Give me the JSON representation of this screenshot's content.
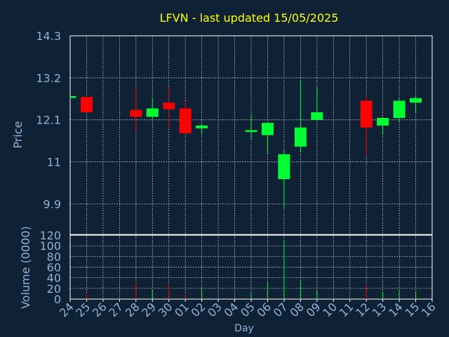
{
  "chart_data": {
    "type": "candlestick",
    "title": "LFVN - last updated 15/05/2025",
    "xlabel": "Day",
    "ylabel_price": "Price",
    "ylabel_volume": "Volume (0000)",
    "price_ylim": [
      9.1,
      14.3
    ],
    "price_ticks": [
      "14.3",
      "13.2",
      "12.1",
      "11",
      "9.9"
    ],
    "price_tick_values": [
      14.3,
      13.2,
      12.1,
      11.0,
      9.9
    ],
    "volume_ylim": [
      0,
      120
    ],
    "volume_ticks": [
      "120",
      "100",
      "80",
      "60",
      "40",
      "20",
      "0"
    ],
    "volume_tick_values": [
      120,
      100,
      80,
      60,
      40,
      20,
      0
    ],
    "grid": true,
    "x_labels": [
      "24",
      "25",
      "26",
      "27",
      "28",
      "29",
      "30",
      "01",
      "02",
      "03",
      "04",
      "05",
      "06",
      "07",
      "08",
      "09",
      "10",
      "11",
      "12",
      "13",
      "14",
      "15",
      "16"
    ],
    "colors": {
      "background": "#0f2135",
      "up": "#00ff33",
      "down": "#ff0000",
      "axis": "#8fb4d8",
      "title": "#ffff00",
      "grid": "#ffffff"
    },
    "candles": [
      {
        "x": "24",
        "open": 12.7,
        "high": 12.7,
        "low": 12.68,
        "close": 12.72,
        "volume": 0
      },
      {
        "x": "25",
        "open": 12.7,
        "high": 12.7,
        "low": 12.3,
        "close": 12.3,
        "volume": 10
      },
      {
        "x": "28",
        "open": 12.36,
        "high": 12.9,
        "low": 11.82,
        "close": 12.18,
        "volume": 32
      },
      {
        "x": "29",
        "open": 12.18,
        "high": 12.68,
        "low": 12.13,
        "close": 12.4,
        "volume": 16
      },
      {
        "x": "30",
        "open": 12.55,
        "high": 12.98,
        "low": 11.88,
        "close": 12.38,
        "volume": 28
      },
      {
        "x": "01",
        "open": 12.4,
        "high": 12.6,
        "low": 11.78,
        "close": 11.75,
        "volume": 10
      },
      {
        "x": "02",
        "open": 11.88,
        "high": 12.0,
        "low": 11.7,
        "close": 11.95,
        "volume": 20
      },
      {
        "x": "05",
        "open": 11.8,
        "high": 12.25,
        "low": 11.6,
        "close": 11.83,
        "volume": 12
      },
      {
        "x": "06",
        "open": 11.7,
        "high": 12.05,
        "low": 11.2,
        "close": 12.02,
        "volume": 30
      },
      {
        "x": "07",
        "open": 10.55,
        "high": 11.3,
        "low": 9.8,
        "close": 11.2,
        "volume": 110
      },
      {
        "x": "08",
        "open": 11.4,
        "high": 13.15,
        "low": 11.25,
        "close": 11.9,
        "volume": 36
      },
      {
        "x": "09",
        "open": 12.1,
        "high": 12.97,
        "low": 12.1,
        "close": 12.3,
        "volume": 16
      },
      {
        "x": "12",
        "open": 12.6,
        "high": 12.75,
        "low": 11.18,
        "close": 11.9,
        "volume": 28
      },
      {
        "x": "13",
        "open": 11.95,
        "high": 12.17,
        "low": 11.7,
        "close": 12.15,
        "volume": 14
      },
      {
        "x": "14",
        "open": 12.15,
        "high": 12.66,
        "low": 12.05,
        "close": 12.6,
        "volume": 18
      },
      {
        "x": "15",
        "open": 12.55,
        "high": 12.76,
        "low": 12.3,
        "close": 12.67,
        "volume": 12
      }
    ]
  }
}
